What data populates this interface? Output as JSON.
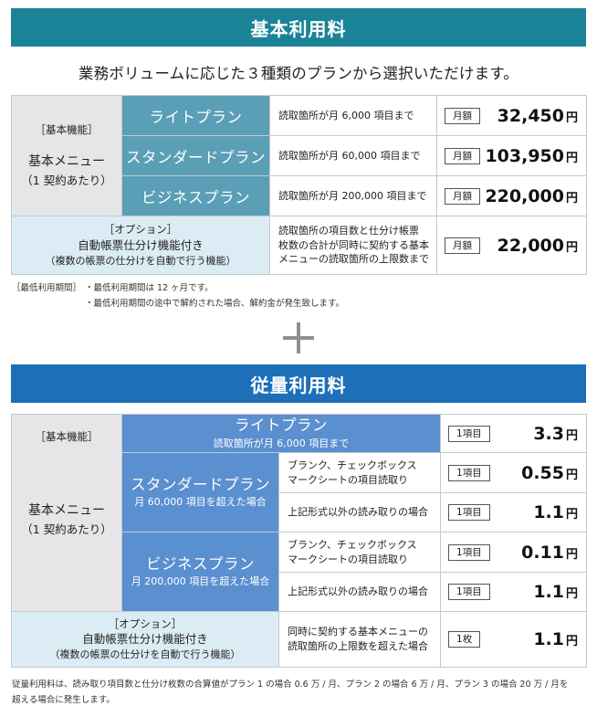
{
  "basic": {
    "title": "基本利用料",
    "lead": "業務ボリュームに応じた３種類のプランから選択いただけます。",
    "category": {
      "tag": "［基本機能］",
      "main": "基本メニュー",
      "sub": "（1 契約あたり）"
    },
    "plans": [
      {
        "name": "ライトプラン",
        "desc": "読取箇所が月 6,000 項目まで",
        "unit": "月額",
        "amount": "32,450",
        "yen": "円"
      },
      {
        "name": "スタンダードプラン",
        "desc": "読取箇所が月 60,000 項目まで",
        "unit": "月額",
        "amount": "103,950",
        "yen": "円"
      },
      {
        "name": "ビジネスプラン",
        "desc": "読取箇所が月 200,000 項目まで",
        "unit": "月額",
        "amount": "220,000",
        "yen": "円"
      }
    ],
    "option": {
      "tag": "［オプション］",
      "main": "自動帳票仕分け機能付き",
      "sub": "（複数の帳票の仕分けを自動で行う機能）",
      "desc_lines": [
        "読取箇所の項目数と仕分け帳票",
        "枚数の合計が同時に契約する基本",
        "メニューの読取箇所の上限数まで"
      ],
      "unit": "月額",
      "amount": "22,000",
      "yen": "円"
    },
    "min_period": {
      "label": "［最低利用期間］",
      "line1": "・最低利用期間は 12 ヶ月です。",
      "line2": "・最低利用期間の途中で解約された場合、解約金が発生致します。"
    }
  },
  "usage": {
    "title": "従量利用料",
    "category": {
      "tag": "［基本機能］",
      "main": "基本メニュー",
      "sub": "（1 契約あたり）"
    },
    "lite": {
      "name": "ライトプラン",
      "note": "読取箇所が月 6,000 項目まで",
      "unit": "1項目",
      "amount": "3.3",
      "yen": "円"
    },
    "standard": {
      "name": "スタンダードプラン",
      "note": "月 60,000 項目を超えた場合",
      "rows": [
        {
          "desc_lines": [
            "ブランク、チェックボックス",
            "マークシートの項目読取り"
          ],
          "unit": "1項目",
          "amount": "0.55",
          "yen": "円"
        },
        {
          "desc_lines": [
            "上記形式以外の読み取りの場合"
          ],
          "unit": "1項目",
          "amount": "1.1",
          "yen": "円"
        }
      ]
    },
    "business": {
      "name": "ビジネスプラン",
      "note": "月 200,000 項目を超えた場合",
      "rows": [
        {
          "desc_lines": [
            "ブランク、チェックボックス",
            "マークシートの項目読取り"
          ],
          "unit": "1項目",
          "amount": "0.11",
          "yen": "円"
        },
        {
          "desc_lines": [
            "上記形式以外の読み取りの場合"
          ],
          "unit": "1項目",
          "amount": "1.1",
          "yen": "円"
        }
      ]
    },
    "option": {
      "tag": "［オプション］",
      "main": "自動帳票仕分け機能付き",
      "sub": "（複数の帳票の仕分けを自動で行う機能）",
      "desc_lines": [
        "同時に契約する基本メニューの",
        "読取箇所の上限数を超えた場合"
      ],
      "unit": "1枚",
      "amount": "1.1",
      "yen": "円"
    },
    "footnote_lines": [
      "従量利用料は、読み取り項目数と仕分け枚数の合算値がプラン 1 の場合 0.6 万 / 月、プラン 2 の場合 6 万 / 月、プラン 3 の場合 20 万 / 月を",
      "超える場合に発生します。"
    ]
  },
  "colors": {
    "basic_header": "#1b8398",
    "usage_header": "#1d6fb8",
    "basic_plan": "#5a9fb6",
    "usage_plan": "#5a8fd0",
    "category": "#e6e6e8",
    "option": "#dcecf4"
  },
  "icons": {
    "plus": "plus-icon"
  }
}
